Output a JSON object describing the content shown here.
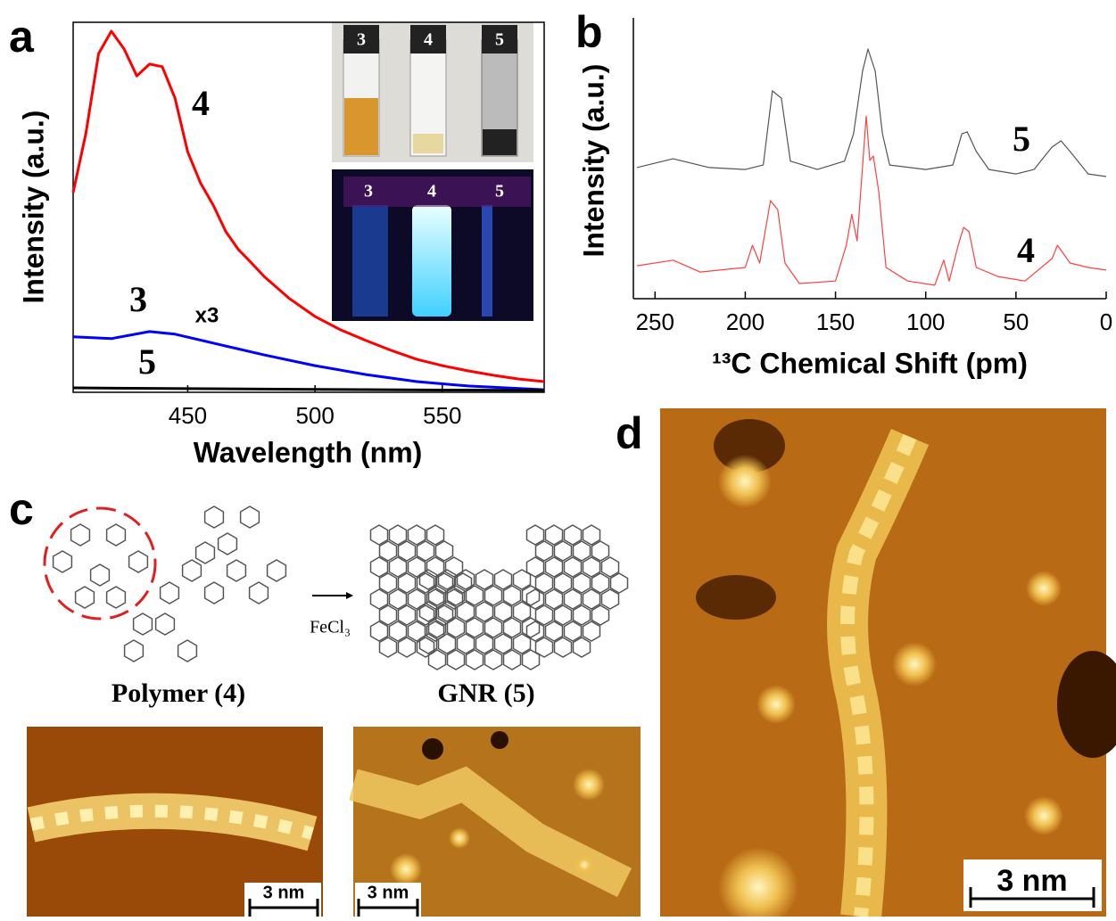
{
  "chart_data": [
    {
      "type": "line",
      "panel": "a",
      "x_label": "Wavelength (nm)",
      "y_label": "Intensity (a.u.)",
      "xlim": [
        405,
        590
      ],
      "xticks": [
        450,
        500,
        550
      ],
      "ylim": [
        0,
        100
      ],
      "annotations": [
        "x3"
      ],
      "series": [
        {
          "name": "4",
          "color": "#ff0000",
          "x": [
            405,
            410,
            415,
            420,
            425,
            430,
            435,
            440,
            445,
            450,
            455,
            460,
            465,
            470,
            475,
            480,
            490,
            500,
            510,
            520,
            530,
            540,
            550,
            560,
            570,
            580,
            590
          ],
          "values": [
            54,
            70,
            91.5,
            97.6,
            92.8,
            85.5,
            88.7,
            88,
            79.5,
            65,
            56.6,
            50.6,
            43.4,
            38.5,
            35,
            31.3,
            25.3,
            20.5,
            16.9,
            14,
            11.3,
            8.9,
            7.2,
            5.8,
            4.6,
            3.6,
            2.9
          ]
        },
        {
          "name": "3",
          "color": "#0000ff",
          "x": [
            405,
            420,
            435,
            445,
            460,
            480,
            500,
            520,
            540,
            560,
            590
          ],
          "values": [
            15,
            14.5,
            16.4,
            15.7,
            13.3,
            10.1,
            7.2,
            4.8,
            2.9,
            1.7,
            0.7
          ]
        },
        {
          "name": "5",
          "color": "#000000",
          "x": [
            405,
            450,
            500,
            550,
            590
          ],
          "values": [
            1.2,
            1,
            0.8,
            0.6,
            0.5
          ]
        }
      ]
    },
    {
      "type": "line",
      "panel": "b",
      "x_label": "¹³C Chemical Shift (pm)",
      "y_label": "Intensity (a.u.)",
      "xlim": [
        262,
        0
      ],
      "xticks": [
        250,
        200,
        150,
        100,
        50,
        0
      ],
      "ylim": [
        0,
        100
      ],
      "series": [
        {
          "name": "5",
          "color": "#555555",
          "x": [
            260,
            240,
            220,
            200,
            190,
            185,
            180,
            175,
            160,
            145,
            140,
            135,
            132,
            128,
            124,
            120,
            100,
            85,
            80,
            77,
            72,
            65,
            50,
            40,
            30,
            25,
            20,
            10,
            0
          ],
          "values": [
            46.7,
            49.8,
            46.7,
            46,
            47.6,
            74,
            71.4,
            49,
            46,
            49,
            58.7,
            81,
            88.9,
            81,
            58.7,
            47.6,
            46,
            47.6,
            58.7,
            59.4,
            52.4,
            46,
            44.4,
            46,
            54,
            56.2,
            52.4,
            44.4,
            43.5
          ]
        },
        {
          "name": "4",
          "color": "#ff4040",
          "x": [
            260,
            240,
            225,
            200,
            196,
            192,
            186,
            182,
            178,
            170,
            150,
            144,
            141,
            138,
            133,
            131,
            129,
            126,
            122,
            110,
            95,
            90,
            87,
            82,
            79,
            76,
            72,
            60,
            45,
            30,
            27,
            20,
            10,
            0
          ],
          "values": [
            11.7,
            13.7,
            9.5,
            11.1,
            19,
            12.7,
            34.9,
            31.7,
            12.7,
            5.4,
            6.3,
            19,
            30,
            20.6,
            65,
            49.2,
            50.8,
            38,
            11.1,
            6.3,
            4.8,
            13.7,
            6.3,
            19,
            25.4,
            23.8,
            11.1,
            7.9,
            6.3,
            14.3,
            19,
            12.7,
            11.1,
            10.2
          ]
        }
      ]
    }
  ],
  "figure": {
    "panel_labels": [
      "a",
      "b",
      "c",
      "d"
    ],
    "vial_labels": [
      "3",
      "4",
      "5"
    ],
    "reagent": "FeCl₃",
    "structure_labels": [
      "Polymer (4)",
      "GNR (5)"
    ],
    "scale_bars": [
      "3 nm",
      "3 nm",
      "3 nm"
    ]
  }
}
